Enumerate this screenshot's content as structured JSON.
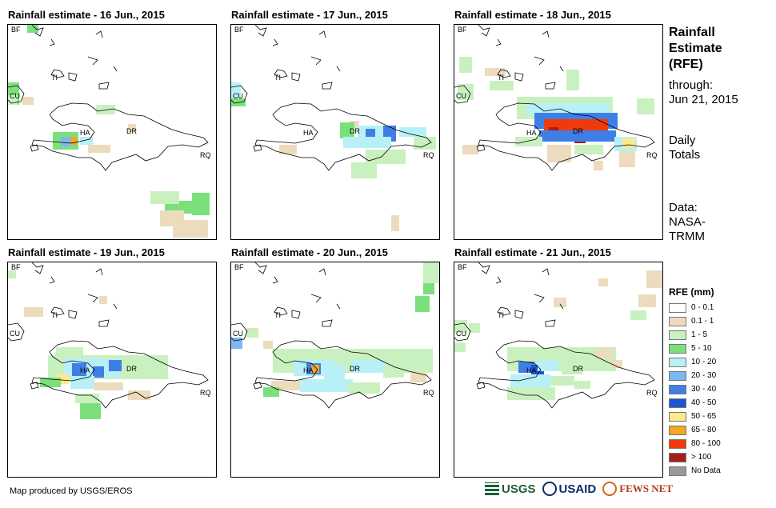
{
  "panels": [
    {
      "title": "Rainfall estimate - 16 Jun., 2015",
      "day": 0
    },
    {
      "title": "Rainfall estimate - 17 Jun., 2015",
      "day": 1
    },
    {
      "title": "Rainfall estimate - 18 Jun., 2015",
      "day": 2
    },
    {
      "title": "Rainfall estimate - 19 Jun., 2015",
      "day": 3
    },
    {
      "title": "Rainfall estimate - 20 Jun., 2015",
      "day": 4
    },
    {
      "title": "Rainfall estimate - 21 Jun., 2015",
      "day": 5
    }
  ],
  "map_labels": {
    "bf": "BF",
    "cu": "CU",
    "ti": "TI",
    "ha": "HA",
    "dr": "DR",
    "rq": "RQ"
  },
  "sidebar": {
    "title_line1": "Rainfall",
    "title_line2": "Estimate",
    "title_line3": "(RFE)",
    "through_label": "through:",
    "through_date": "Jun 21, 2015",
    "totals_line1": "Daily",
    "totals_line2": "Totals",
    "data_label": "Data:",
    "data_source_line1": "NASA-",
    "data_source_line2": "TRMM"
  },
  "legend": {
    "title": "RFE (mm)",
    "items": [
      {
        "label": "0 - 0.1",
        "color": "#ffffff"
      },
      {
        "label": "0.1 - 1",
        "color": "#ecdcbd"
      },
      {
        "label": "1 - 5",
        "color": "#c9f1c0"
      },
      {
        "label": "5 - 10",
        "color": "#7be07b"
      },
      {
        "label": "10 - 20",
        "color": "#b8f0f7"
      },
      {
        "label": "20 - 30",
        "color": "#7db7ef"
      },
      {
        "label": "30 - 40",
        "color": "#3f7fe5"
      },
      {
        "label": "40 - 50",
        "color": "#1b55d8"
      },
      {
        "label": "50 - 65",
        "color": "#ffe98a"
      },
      {
        "label": "65 - 80",
        "color": "#f5a623"
      },
      {
        "label": "80 - 100",
        "color": "#f03a0c"
      },
      {
        "label": "> 100",
        "color": "#a61e1e"
      },
      {
        "label": "No Data",
        "color": "#999999"
      }
    ]
  },
  "credit": "Map produced by USGS/EROS",
  "logos": {
    "usgs": "USGS",
    "usaid": "USAID",
    "fews": "FEWS NET"
  }
}
